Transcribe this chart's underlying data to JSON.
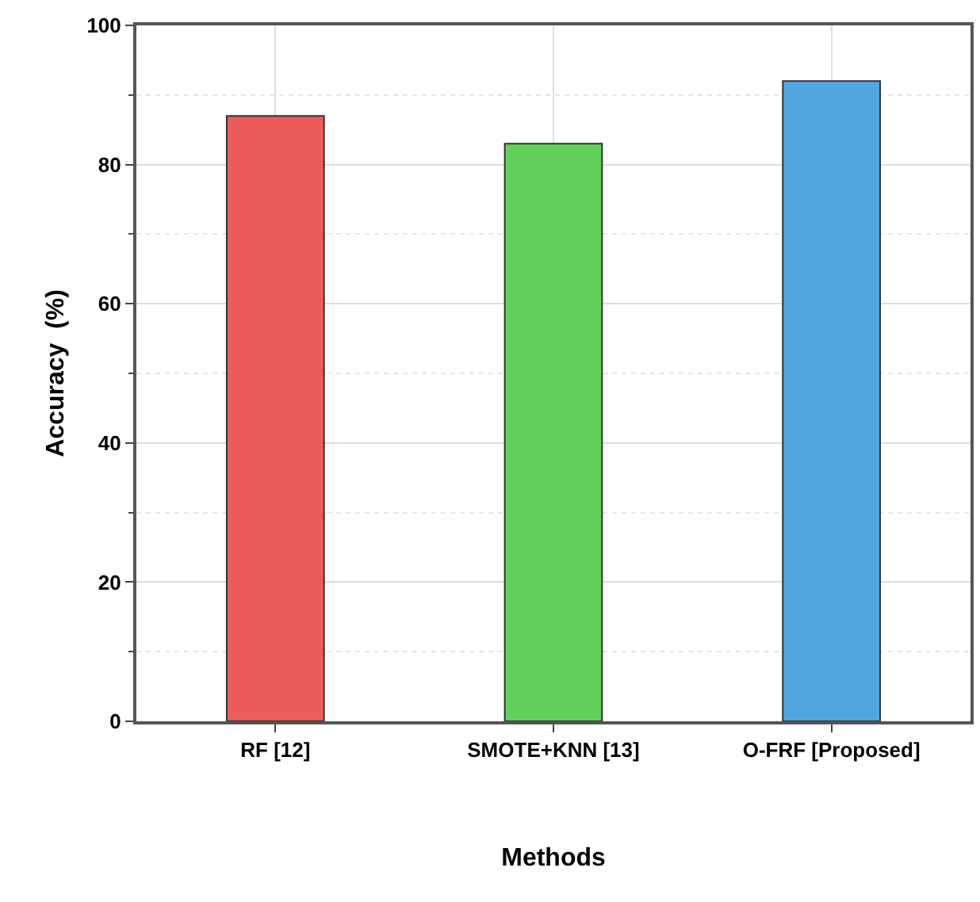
{
  "chart_data": {
    "type": "bar",
    "xlabel": "Methods",
    "ylabel": "Accuracy  (%)",
    "categories": [
      "RF [12]",
      "SMOTE+KNN [13]",
      "O-FRF [Proposed]"
    ],
    "values": [
      87,
      83,
      92
    ],
    "colors": [
      "#eb5c5c",
      "#62d15c",
      "#52a6e0"
    ],
    "ylim": [
      0,
      100
    ],
    "yticks": [
      0,
      20,
      40,
      60,
      80,
      100
    ],
    "grid": true
  }
}
